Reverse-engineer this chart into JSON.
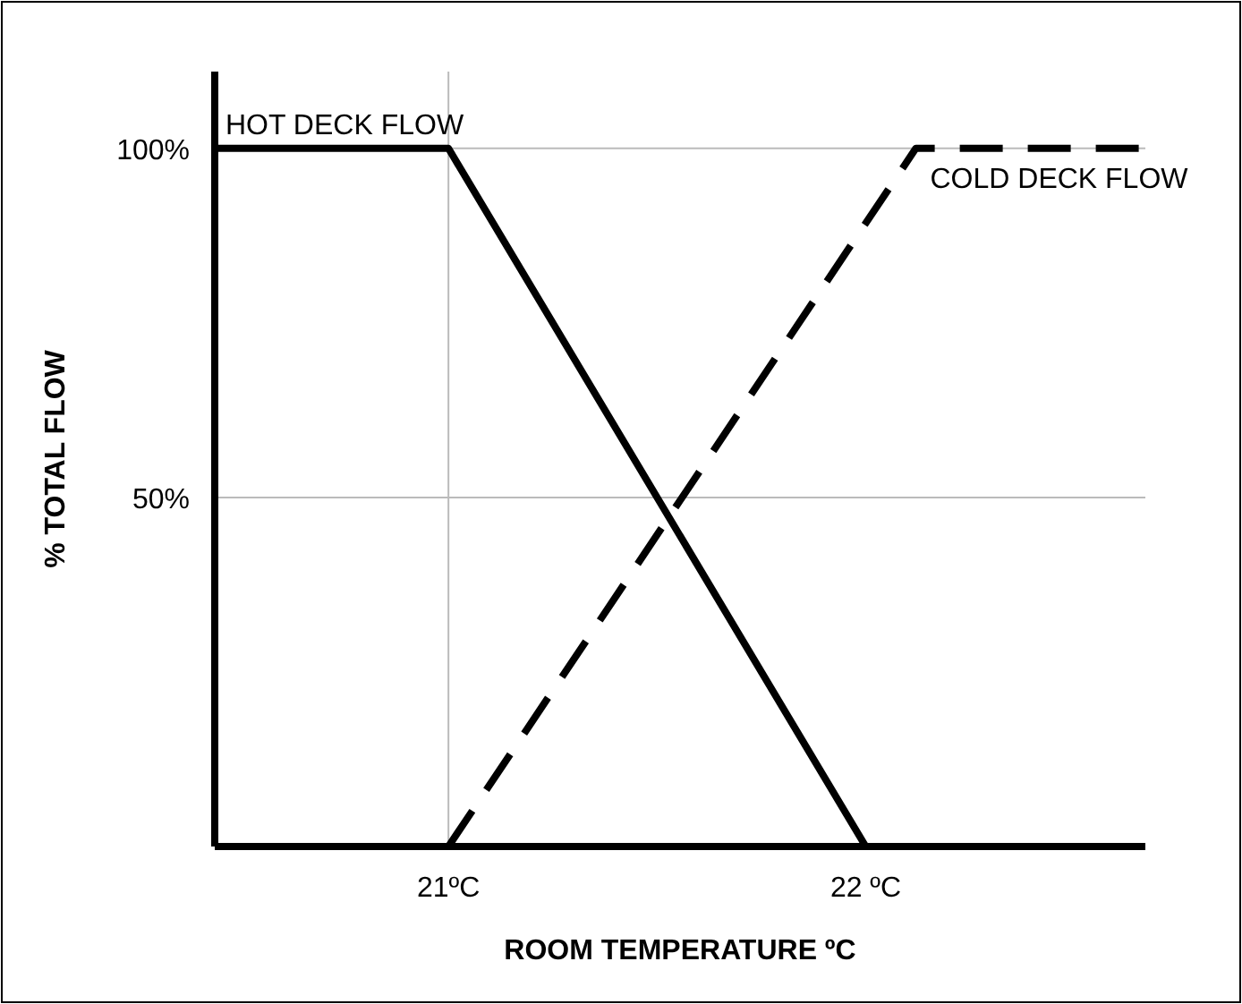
{
  "chart_data": {
    "type": "line",
    "xlabel": "ROOM TEMPERATURE ºC",
    "ylabel": "% TOTAL FLOW",
    "xlim": [
      20.44,
      22.67
    ],
    "ylim": [
      0,
      111
    ],
    "xticks": [
      {
        "value": 21,
        "label": "21ºC"
      },
      {
        "value": 22,
        "label": "22 ºC"
      }
    ],
    "yticks": [
      {
        "value": 50,
        "label": "50%"
      },
      {
        "value": 100,
        "label": "100%"
      }
    ],
    "series": [
      {
        "name": "HOT DECK FLOW",
        "color": "#000000",
        "line_style": "solid",
        "x": [
          20.44,
          21,
          22
        ],
        "values": [
          100,
          100,
          0
        ]
      },
      {
        "name": "COLD DECK FLOW",
        "color": "#000000",
        "line_style": "dashed",
        "x": [
          21,
          22.12,
          22.66
        ],
        "values": [
          0,
          100,
          100
        ]
      }
    ],
    "ref_lines": [
      {
        "axis": "x",
        "value": 21,
        "color": "#bbbbbb"
      },
      {
        "axis": "y",
        "value": 50,
        "color": "#bbbbbb"
      },
      {
        "axis": "y",
        "value": 100,
        "color": "#bbbbbb"
      }
    ],
    "grid": false,
    "marker": "none"
  }
}
